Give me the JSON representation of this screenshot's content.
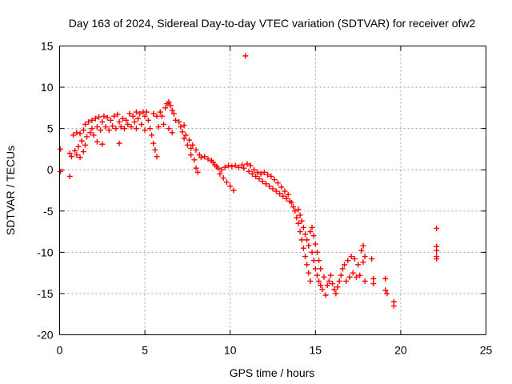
{
  "chart_data": {
    "type": "scatter",
    "title": "Day 163 of 2024, Sidereal Day-to-day VTEC variation (SDTVAR) for receiver ofw2",
    "xlabel": "GPS time / hours",
    "ylabel": "SDTVAR / TECUs",
    "xlim": [
      0,
      25
    ],
    "ylim": [
      -20,
      15
    ],
    "xticks": [
      0,
      5,
      10,
      15,
      20,
      25
    ],
    "yticks": [
      -20,
      -15,
      -10,
      -5,
      0,
      5,
      10,
      15
    ],
    "grid": true,
    "marker": "plus",
    "series_color": "#ff0000",
    "series": [
      {
        "name": "SDTVAR",
        "points": [
          [
            0.05,
            2.5
          ],
          [
            0.05,
            -0.2
          ],
          [
            0.6,
            -0.8
          ],
          [
            0.6,
            2.0
          ],
          [
            0.7,
            1.6
          ],
          [
            0.8,
            4.2
          ],
          [
            0.9,
            2.3
          ],
          [
            1.0,
            4.5
          ],
          [
            1.0,
            1.8
          ],
          [
            1.1,
            2.8
          ],
          [
            1.2,
            4.4
          ],
          [
            1.2,
            1.5
          ],
          [
            1.3,
            3.5
          ],
          [
            1.4,
            4.8
          ],
          [
            1.4,
            2.2
          ],
          [
            1.5,
            5.5
          ],
          [
            1.5,
            3.0
          ],
          [
            1.6,
            4.0
          ],
          [
            1.7,
            5.8
          ],
          [
            1.8,
            4.5
          ],
          [
            1.9,
            6.0
          ],
          [
            1.9,
            5.0
          ],
          [
            2.0,
            4.2
          ],
          [
            2.1,
            6.2
          ],
          [
            2.2,
            5.2
          ],
          [
            2.2,
            3.4
          ],
          [
            2.3,
            6.4
          ],
          [
            2.4,
            4.8
          ],
          [
            2.5,
            5.8
          ],
          [
            2.5,
            3.1
          ],
          [
            2.6,
            6.5
          ],
          [
            2.7,
            5.2
          ],
          [
            2.8,
            6.3
          ],
          [
            2.9,
            4.8
          ],
          [
            3.0,
            6.0
          ],
          [
            3.1,
            5.3
          ],
          [
            3.2,
            6.5
          ],
          [
            3.3,
            5.0
          ],
          [
            3.4,
            6.7
          ],
          [
            3.5,
            5.8
          ],
          [
            3.5,
            3.2
          ],
          [
            3.6,
            5.2
          ],
          [
            3.7,
            6.2
          ],
          [
            3.8,
            5.0
          ],
          [
            3.9,
            6.0
          ],
          [
            4.0,
            5.5
          ],
          [
            4.1,
            6.8
          ],
          [
            4.2,
            5.2
          ],
          [
            4.3,
            6.5
          ],
          [
            4.4,
            5.8
          ],
          [
            4.5,
            7.0
          ],
          [
            4.5,
            5.0
          ],
          [
            4.6,
            6.2
          ],
          [
            4.7,
            6.8
          ],
          [
            4.8,
            5.5
          ],
          [
            4.9,
            7.0
          ],
          [
            5.0,
            6.5
          ],
          [
            5.0,
            4.8
          ],
          [
            5.1,
            7.0
          ],
          [
            5.2,
            6.0
          ],
          [
            5.3,
            5.0
          ],
          [
            5.4,
            4.2
          ],
          [
            5.5,
            6.8
          ],
          [
            5.5,
            3.2
          ],
          [
            5.6,
            2.4
          ],
          [
            5.7,
            6.5
          ],
          [
            5.7,
            1.6
          ],
          [
            5.8,
            5.2
          ],
          [
            5.9,
            7.0
          ],
          [
            6.0,
            6.5
          ],
          [
            6.1,
            5.5
          ],
          [
            6.2,
            7.5
          ],
          [
            6.3,
            8.0
          ],
          [
            6.4,
            8.2
          ],
          [
            6.4,
            5.0
          ],
          [
            6.5,
            7.8
          ],
          [
            6.6,
            7.2
          ],
          [
            6.6,
            4.5
          ],
          [
            6.7,
            6.8
          ],
          [
            6.8,
            6.0
          ],
          [
            7.0,
            5.8
          ],
          [
            7.1,
            5.2
          ],
          [
            7.2,
            4.6
          ],
          [
            7.3,
            3.8
          ],
          [
            7.3,
            5.4
          ],
          [
            7.4,
            4.2
          ],
          [
            7.5,
            3.0
          ],
          [
            7.6,
            3.6
          ],
          [
            7.7,
            2.6
          ],
          [
            7.7,
            1.8
          ],
          [
            7.8,
            3.0
          ],
          [
            7.9,
            1.2
          ],
          [
            8.0,
            2.4
          ],
          [
            8.0,
            0.2
          ],
          [
            8.1,
            -0.3
          ],
          [
            8.2,
            1.8
          ],
          [
            8.3,
            1.5
          ],
          [
            8.5,
            1.6
          ],
          [
            8.7,
            1.3
          ],
          [
            8.9,
            1.1
          ],
          [
            9.0,
            0.9
          ],
          [
            9.1,
            0.6
          ],
          [
            9.2,
            0.4
          ],
          [
            9.3,
            0.2
          ],
          [
            9.4,
            -0.5
          ],
          [
            9.5,
            0.0
          ],
          [
            9.6,
            -1.0
          ],
          [
            9.7,
            0.3
          ],
          [
            9.8,
            -1.5
          ],
          [
            9.9,
            0.5
          ],
          [
            10.0,
            -2.0
          ],
          [
            10.1,
            0.4
          ],
          [
            10.2,
            -2.5
          ],
          [
            10.3,
            0.5
          ],
          [
            10.5,
            0.3
          ],
          [
            10.7,
            0.6
          ],
          [
            10.8,
            0.2
          ],
          [
            10.9,
            13.8
          ],
          [
            11.0,
            0.7
          ],
          [
            11.1,
            -0.2
          ],
          [
            11.2,
            0.5
          ],
          [
            11.3,
            -0.5
          ],
          [
            11.4,
            0.0
          ],
          [
            11.5,
            -0.8
          ],
          [
            11.6,
            -0.3
          ],
          [
            11.7,
            -1.1
          ],
          [
            11.8,
            -0.5
          ],
          [
            11.9,
            -1.4
          ],
          [
            12.0,
            -0.3
          ],
          [
            12.1,
            -1.7
          ],
          [
            12.2,
            -0.6
          ],
          [
            12.3,
            -2.0
          ],
          [
            12.4,
            -0.8
          ],
          [
            12.5,
            -2.3
          ],
          [
            12.6,
            -1.2
          ],
          [
            12.7,
            -2.6
          ],
          [
            12.8,
            -1.6
          ],
          [
            12.9,
            -2.9
          ],
          [
            13.0,
            -2.1
          ],
          [
            13.1,
            -3.2
          ],
          [
            13.2,
            -2.6
          ],
          [
            13.3,
            -3.5
          ],
          [
            13.4,
            -3.0
          ],
          [
            13.5,
            -3.8
          ],
          [
            13.6,
            -4.0
          ],
          [
            13.7,
            -4.5
          ],
          [
            13.8,
            -5.0
          ],
          [
            13.9,
            -5.8
          ],
          [
            14.0,
            -6.5
          ],
          [
            14.0,
            -4.8
          ],
          [
            14.1,
            -7.5
          ],
          [
            14.1,
            -5.5
          ],
          [
            14.2,
            -8.5
          ],
          [
            14.2,
            -6.2
          ],
          [
            14.3,
            -9.5
          ],
          [
            14.3,
            -7.0
          ],
          [
            14.4,
            -10.5
          ],
          [
            14.4,
            -7.8
          ],
          [
            14.5,
            -11.5
          ],
          [
            14.5,
            -8.5
          ],
          [
            14.6,
            -12.5
          ],
          [
            14.6,
            -9.2
          ],
          [
            14.7,
            -13.5
          ],
          [
            14.7,
            -7.5
          ],
          [
            14.8,
            -10.0
          ],
          [
            14.8,
            -7.0
          ],
          [
            14.9,
            -11.0
          ],
          [
            14.9,
            -8.0
          ],
          [
            15.0,
            -12.0
          ],
          [
            15.0,
            -9.0
          ],
          [
            15.1,
            -12.8
          ],
          [
            15.1,
            -10.0
          ],
          [
            15.2,
            -13.5
          ],
          [
            15.2,
            -11.0
          ],
          [
            15.3,
            -14.0
          ],
          [
            15.3,
            -12.0
          ],
          [
            15.4,
            -14.5
          ],
          [
            15.5,
            -13.0
          ],
          [
            15.6,
            -15.2
          ],
          [
            15.7,
            -14.0
          ],
          [
            15.8,
            -13.5
          ],
          [
            15.9,
            -12.8
          ],
          [
            16.0,
            -13.8
          ],
          [
            16.1,
            -14.5
          ],
          [
            16.2,
            -15.0
          ],
          [
            16.3,
            -14.2
          ],
          [
            16.4,
            -13.5
          ],
          [
            16.5,
            -12.8
          ],
          [
            16.6,
            -12.0
          ],
          [
            16.7,
            -11.5
          ],
          [
            16.8,
            -13.5
          ],
          [
            16.9,
            -11.0
          ],
          [
            17.0,
            -13.0
          ],
          [
            17.1,
            -10.5
          ],
          [
            17.2,
            -12.5
          ],
          [
            17.3,
            -10.8
          ],
          [
            17.4,
            -13.0
          ],
          [
            17.5,
            -11.5
          ],
          [
            17.6,
            -12.8
          ],
          [
            17.7,
            -9.8
          ],
          [
            17.8,
            -9.2
          ],
          [
            17.8,
            -11.2
          ],
          [
            17.9,
            -13.5
          ],
          [
            17.9,
            -10.5
          ],
          [
            18.3,
            -10.8
          ],
          [
            18.4,
            -13.2
          ],
          [
            18.4,
            -13.8
          ],
          [
            19.1,
            -13.2
          ],
          [
            19.1,
            -14.6
          ],
          [
            19.2,
            -15.0
          ],
          [
            19.6,
            -16.0
          ],
          [
            19.6,
            -16.5
          ],
          [
            22.1,
            -7.1
          ],
          [
            22.1,
            -9.3
          ],
          [
            22.1,
            -9.8
          ],
          [
            22.1,
            -10.5
          ],
          [
            22.1,
            -10.8
          ]
        ]
      }
    ]
  }
}
